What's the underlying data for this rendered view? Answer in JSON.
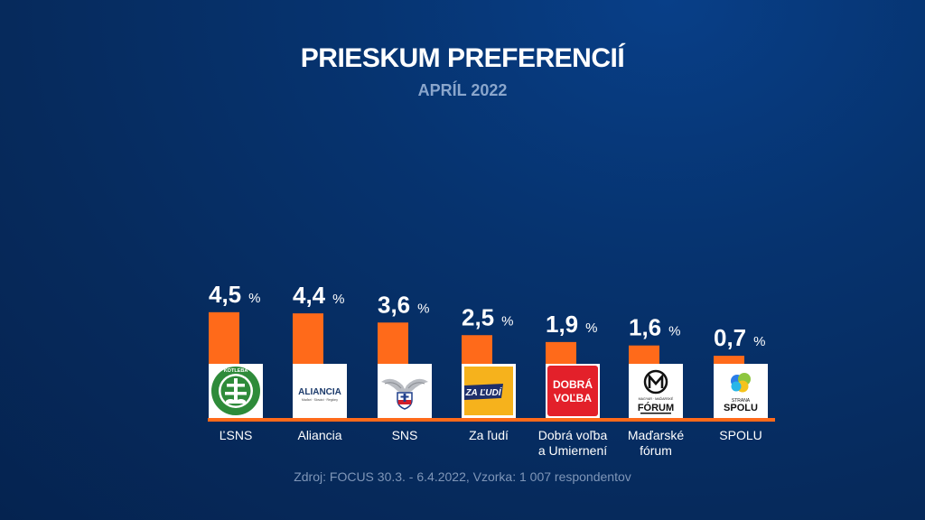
{
  "title": "PRIESKUM PREFERENCIÍ",
  "subtitle": "APRÍL 2022",
  "source": "Zdroj: FOCUS 30.3. - 6.4.2022, Vzorka: 1 007 respondentov",
  "colors": {
    "bar": "#ff6a1a",
    "background": "#06336f"
  },
  "chart_data": {
    "type": "bar",
    "categories": [
      "ĽSNS",
      "Aliancia",
      "SNS",
      "Za ľudí",
      "Dobrá voľba\na Umiernení",
      "Maďarské\nfórum",
      "SPOLU"
    ],
    "values": [
      4.5,
      4.4,
      3.6,
      2.5,
      1.9,
      1.6,
      0.7
    ],
    "value_labels": [
      "4,5",
      "4,4",
      "3,6",
      "2,5",
      "1,9",
      "1,6",
      "0,7"
    ],
    "unit": "%",
    "ylim": [
      0,
      5
    ],
    "grid": false,
    "legend": "none"
  },
  "logos": [
    {
      "icon": "kotleba-lsns-logo",
      "text": "KOTLEBA"
    },
    {
      "icon": "aliancia-logo",
      "text": "ALIANCIA",
      "sub": "Maďari · Slováci · Regióny"
    },
    {
      "icon": "sns-eagle-logo"
    },
    {
      "icon": "za-ludi-logo",
      "text": "ZA ĽUDÍ"
    },
    {
      "icon": "dobra-volba-logo",
      "text": "DOBRÁ\nVOĽBA"
    },
    {
      "icon": "madarske-forum-logo",
      "text": "FÓRUM",
      "sub": "MAGYAR · MAĎARSKÉ"
    },
    {
      "icon": "spolu-logo",
      "text": "SPOLU",
      "sub": "STRANA"
    }
  ]
}
